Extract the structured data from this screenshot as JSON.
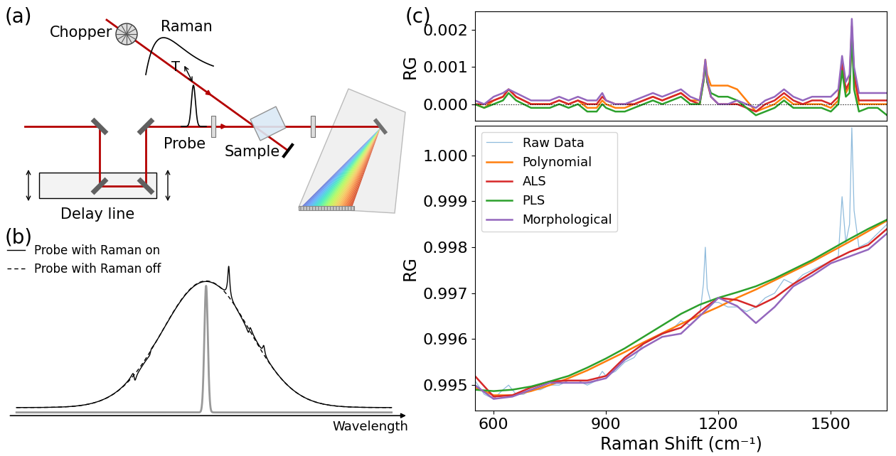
{
  "panel_labels": [
    "(a)",
    "(b)",
    "(c)"
  ],
  "panel_a": {
    "chopper": "Chopper",
    "raman": "Raman",
    "delay": "T",
    "probe": "Probe",
    "sample": "Sample",
    "delay_line": "Delay line"
  },
  "panel_b": {
    "legend_entries": [
      "Probe with Raman on",
      "Probe with Raman off"
    ],
    "axis_label": "Wavelength"
  },
  "chart_data": [
    {
      "type": "line",
      "ylabel": "RG",
      "xlim": [
        550,
        1650
      ],
      "ylim": [
        -0.00045,
        0.0025
      ],
      "yticks": [
        {
          "value": 0,
          "label": "0.000"
        },
        {
          "value": 0.001,
          "label": "0.001"
        },
        {
          "value": 0.002,
          "label": "0.002"
        }
      ],
      "tick_labels": "y",
      "hlines": [
        0
      ],
      "x": [
        550,
        575,
        600,
        625,
        640,
        660,
        680,
        700,
        725,
        750,
        775,
        800,
        825,
        850,
        875,
        890,
        900,
        925,
        950,
        975,
        1000,
        1025,
        1050,
        1075,
        1100,
        1125,
        1150,
        1160,
        1165,
        1170,
        1180,
        1200,
        1225,
        1250,
        1275,
        1300,
        1325,
        1350,
        1375,
        1400,
        1425,
        1450,
        1475,
        1500,
        1520,
        1530,
        1540,
        1550,
        1556,
        1562,
        1575,
        1600,
        1625,
        1650
      ],
      "series": [
        {
          "color": "#ff7f0e",
          "values": [
            0.0,
            -0.0001,
            0.0001,
            0.0002,
            0.0004,
            0.0002,
            0.0001,
            0.0,
            0.0,
            0.0,
            0.0001,
            0.0,
            0.0001,
            -0.0001,
            -0.0001,
            0.0001,
            0.0,
            -0.0001,
            -0.0001,
            0.0,
            0.0001,
            0.0002,
            0.0001,
            0.0002,
            0.0003,
            0.0001,
            0.0001,
            0.0007,
            0.0012,
            0.0008,
            0.0005,
            0.0005,
            0.0005,
            0.0004,
            0.0001,
            -0.0002,
            -0.0001,
            0.0,
            0.0002,
            0.0,
            0.0,
            0.0,
            0.0,
            -0.0001,
            0.0001,
            0.0011,
            0.0003,
            0.0005,
            0.0019,
            0.0007,
            0.0,
            0.0,
            0.0,
            0.0
          ]
        },
        {
          "color": "#d62728",
          "values": [
            0.0,
            0.0,
            0.0001,
            0.0002,
            0.0004,
            0.0002,
            0.0001,
            0.0,
            0.0,
            0.0,
            0.0001,
            0.0,
            0.0001,
            0.0,
            0.0,
            0.0002,
            0.0001,
            0.0,
            0.0,
            0.0,
            0.0001,
            0.0002,
            0.0001,
            0.0002,
            0.0003,
            0.0001,
            0.0,
            0.0006,
            0.0011,
            0.0006,
            0.0002,
            0.0,
            0.0,
            0.0,
            -0.0001,
            -0.0002,
            0.0,
            0.0001,
            0.0003,
            0.0001,
            0.0,
            0.0001,
            0.0001,
            0.0,
            0.0002,
            0.0011,
            0.0004,
            0.0006,
            0.0021,
            0.0008,
            0.0001,
            0.0001,
            0.0001,
            0.0001
          ]
        },
        {
          "color": "#2ca02c",
          "values": [
            0.0,
            -0.0001,
            0.0,
            0.0001,
            0.0003,
            0.0001,
            0.0,
            -0.0001,
            -0.0001,
            -0.0001,
            0.0,
            -0.0001,
            0.0,
            -0.0002,
            -0.0002,
            0.0,
            -0.0001,
            -0.0002,
            -0.0002,
            -0.0001,
            0.0,
            0.0001,
            0.0,
            0.0001,
            0.0002,
            0.0,
            0.0,
            0.0006,
            0.0011,
            0.0006,
            0.0003,
            0.0002,
            0.0002,
            0.0001,
            -0.0001,
            -0.0003,
            -0.0002,
            -0.0001,
            0.0001,
            -0.0001,
            -0.0001,
            -0.0001,
            -0.0001,
            -0.0002,
            0.0,
            0.0009,
            0.0002,
            0.0003,
            0.0019,
            0.0004,
            -0.0002,
            -0.0001,
            -0.0001,
            -0.0003
          ]
        },
        {
          "color": "#9467bd",
          "values": [
            0.0001,
            0.0,
            0.0002,
            0.0003,
            0.0004,
            0.0003,
            0.0002,
            0.0001,
            0.0001,
            0.0001,
            0.0002,
            0.0001,
            0.0002,
            0.0001,
            0.0001,
            0.0003,
            0.0001,
            0.0,
            0.0,
            0.0001,
            0.0002,
            0.0003,
            0.0002,
            0.0003,
            0.0004,
            0.0002,
            0.0001,
            0.0007,
            0.0012,
            0.0007,
            0.0002,
            0.0,
            0.0,
            0.0001,
            0.0,
            -0.0001,
            0.0001,
            0.0002,
            0.0004,
            0.0002,
            0.0001,
            0.0002,
            0.0002,
            0.0002,
            0.0004,
            0.0013,
            0.0006,
            0.0008,
            0.0023,
            0.001,
            0.0003,
            0.0003,
            0.0003,
            0.0003
          ]
        }
      ]
    },
    {
      "type": "line",
      "xlabel": "Raman Shift (cm⁻¹)",
      "ylabel": "RG",
      "xlim": [
        550,
        1650
      ],
      "ylim": [
        0.99445,
        1.00065
      ],
      "xticks": [
        600,
        900,
        1200,
        1500
      ],
      "yticks": [
        0.995,
        0.996,
        0.997,
        0.998,
        0.999,
        {
          "value": 1.0,
          "label": "1.000"
        }
      ],
      "legend": "upper left",
      "series": [
        {
          "name": "Raw Data",
          "color": "#8fbbdc",
          "x": [
            550,
            575,
            600,
            625,
            640,
            660,
            680,
            700,
            725,
            750,
            775,
            800,
            825,
            850,
            875,
            890,
            900,
            925,
            950,
            975,
            1000,
            1025,
            1050,
            1075,
            1100,
            1125,
            1150,
            1160,
            1165,
            1170,
            1180,
            1200,
            1225,
            1250,
            1275,
            1300,
            1325,
            1350,
            1375,
            1400,
            1425,
            1450,
            1475,
            1500,
            1520,
            1530,
            1540,
            1550,
            1556,
            1562,
            1575,
            1600,
            1625,
            1650
          ],
          "values": [
            0.9951,
            0.9948,
            0.9947,
            0.9949,
            0.995,
            0.9948,
            0.9948,
            0.9949,
            0.9949,
            0.995,
            0.995,
            0.9951,
            0.9951,
            0.995,
            0.9951,
            0.9953,
            0.9952,
            0.9953,
            0.9955,
            0.9956,
            0.9959,
            0.996,
            0.9961,
            0.9962,
            0.9964,
            0.9963,
            0.9965,
            0.9972,
            0.998,
            0.9971,
            0.9968,
            0.9968,
            0.9967,
            0.9967,
            0.9966,
            0.9967,
            0.9969,
            0.997,
            0.9973,
            0.9972,
            0.9974,
            0.9975,
            0.9976,
            0.9977,
            0.9978,
            0.9991,
            0.9981,
            0.9985,
            1.0006,
            0.9988,
            0.998,
            0.9981,
            0.9983,
            0.9985
          ]
        },
        {
          "name": "Polynomial",
          "color": "#ff7f0e",
          "x": [
            550,
            600,
            650,
            700,
            750,
            800,
            850,
            900,
            950,
            1000,
            1050,
            1100,
            1150,
            1200,
            1250,
            1300,
            1350,
            1400,
            1450,
            1500,
            1550,
            1600,
            1650
          ],
          "values": [
            0.99495,
            0.99478,
            0.99478,
            0.99487,
            0.995,
            0.99515,
            0.99532,
            0.99552,
            0.99572,
            0.99593,
            0.99613,
            0.99633,
            0.99652,
            0.9967,
            0.9969,
            0.99708,
            0.99728,
            0.99748,
            0.99768,
            0.9979,
            0.99812,
            0.99835,
            0.99858
          ]
        },
        {
          "name": "ALS",
          "color": "#d62728",
          "x": [
            550,
            600,
            650,
            700,
            750,
            800,
            850,
            900,
            950,
            1000,
            1050,
            1100,
            1150,
            1200,
            1250,
            1300,
            1350,
            1400,
            1450,
            1500,
            1550,
            1600,
            1650
          ],
          "values": [
            0.9952,
            0.99475,
            0.99478,
            0.99495,
            0.99508,
            0.9951,
            0.9951,
            0.9952,
            0.9956,
            0.9959,
            0.99612,
            0.99625,
            0.9966,
            0.9969,
            0.99685,
            0.9967,
            0.9969,
            0.9972,
            0.99745,
            0.9977,
            0.9979,
            0.99805,
            0.9984
          ]
        },
        {
          "name": "PLS",
          "color": "#2ca02c",
          "x": [
            550,
            600,
            650,
            700,
            750,
            800,
            850,
            900,
            950,
            1000,
            1050,
            1100,
            1150,
            1200,
            1250,
            1300,
            1350,
            1400,
            1450,
            1500,
            1550,
            1600,
            1650
          ],
          "values": [
            0.9949,
            0.99487,
            0.9949,
            0.99497,
            0.99508,
            0.9952,
            0.99538,
            0.99558,
            0.9958,
            0.99605,
            0.9963,
            0.99655,
            0.99675,
            0.9969,
            0.99702,
            0.99715,
            0.99732,
            0.99752,
            0.99772,
            0.99795,
            0.99818,
            0.9984,
            0.9986
          ]
        },
        {
          "name": "Morphological",
          "color": "#9467bd",
          "x": [
            550,
            600,
            650,
            700,
            750,
            800,
            850,
            900,
            950,
            1000,
            1050,
            1100,
            1150,
            1200,
            1250,
            1300,
            1350,
            1400,
            1450,
            1500,
            1550,
            1600,
            1650
          ],
          "values": [
            0.995,
            0.9947,
            0.99475,
            0.9949,
            0.99505,
            0.99505,
            0.99505,
            0.99515,
            0.99555,
            0.99582,
            0.99605,
            0.99612,
            0.9965,
            0.9969,
            0.99672,
            0.99635,
            0.9967,
            0.99715,
            0.99738,
            0.99765,
            0.9978,
            0.99795,
            0.9983
          ]
        }
      ]
    }
  ]
}
